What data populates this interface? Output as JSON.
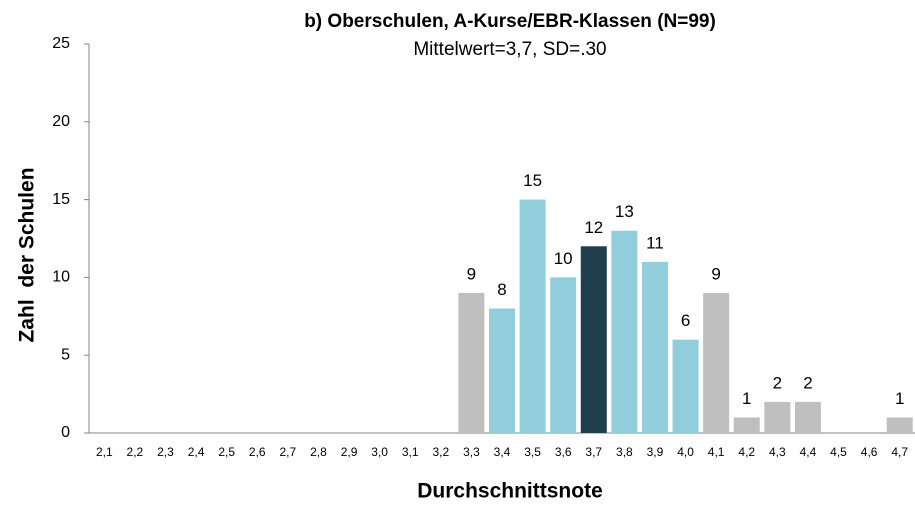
{
  "chart_data": {
    "type": "bar",
    "title": "b) Oberschulen, A-Kurse/EBR-Klassen (N=99)",
    "subtitle": "Mittelwert=3,7, SD=.30",
    "x_label": "Durchschnittsnote",
    "y_label": "Zahl  der Schulen",
    "categories": [
      "2,1",
      "2,2",
      "2,3",
      "2,4",
      "2,5",
      "2,6",
      "2,7",
      "2,8",
      "2,9",
      "3,0",
      "3,1",
      "3,2",
      "3,3",
      "3,4",
      "3,5",
      "3,6",
      "3,7",
      "3,8",
      "3,9",
      "4,0",
      "4,1",
      "4,2",
      "4,3",
      "4,4",
      "4,5",
      "4,6",
      "4,7"
    ],
    "values": [
      0,
      0,
      0,
      0,
      0,
      0,
      0,
      0,
      0,
      0,
      0,
      0,
      9,
      8,
      15,
      10,
      12,
      13,
      11,
      6,
      9,
      1,
      2,
      2,
      0,
      0,
      1
    ],
    "colors": [
      "#bfbfbf",
      "#bfbfbf",
      "#bfbfbf",
      "#bfbfbf",
      "#bfbfbf",
      "#bfbfbf",
      "#bfbfbf",
      "#bfbfbf",
      "#bfbfbf",
      "#bfbfbf",
      "#bfbfbf",
      "#bfbfbf",
      "#bfbfbf",
      "#92cddc",
      "#92cddc",
      "#92cddc",
      "#1f3f4f",
      "#92cddc",
      "#92cddc",
      "#92cddc",
      "#bfbfbf",
      "#bfbfbf",
      "#bfbfbf",
      "#bfbfbf",
      "#bfbfbf",
      "#bfbfbf",
      "#bfbfbf"
    ],
    "ylim": [
      0,
      25
    ],
    "yticks": [
      0,
      5,
      10,
      15,
      20,
      25
    ],
    "grid": false,
    "data_labels": true
  }
}
